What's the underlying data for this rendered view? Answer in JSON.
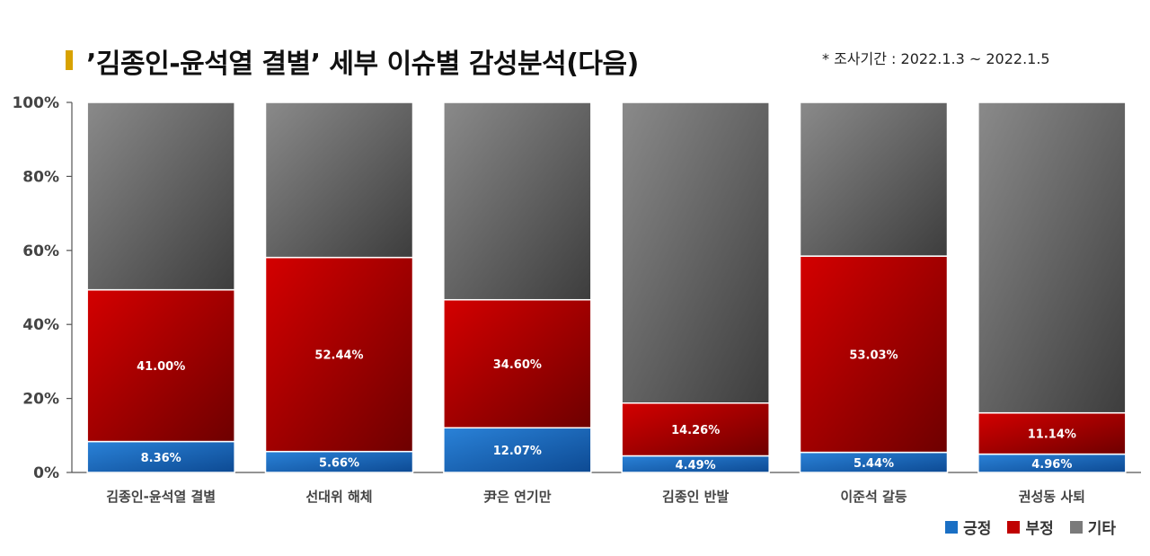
{
  "header": {
    "title": "’김종인-윤석열 결별’ 세부 이슈별 감성분석(다음)",
    "period": "* 조사기간 : 2022.1.3 ~ 2022.1.5"
  },
  "colors": {
    "positive": "#1a6fc4",
    "negative": "#c00000",
    "other": "#7a7a7a",
    "accent": "#d8a200"
  },
  "chart_data": {
    "type": "bar",
    "stacked": true,
    "categories": [
      "김종인-윤석열 결별",
      "선대위 해체",
      "尹은 연기만",
      "김종인 반발",
      "이준석 갈등",
      "권성동 사퇴"
    ],
    "series": [
      {
        "name": "긍정",
        "values": [
          8.36,
          5.66,
          12.07,
          4.49,
          5.44,
          4.96
        ],
        "labels": [
          "8.36%",
          "5.66%",
          "12.07%",
          "4.49%",
          "5.44%",
          "4.96%"
        ]
      },
      {
        "name": "부정",
        "values": [
          41.0,
          52.44,
          34.6,
          14.26,
          53.03,
          11.14
        ],
        "labels": [
          "41.00%",
          "52.44%",
          "34.60%",
          "14.26%",
          "53.03%",
          "11.14%"
        ]
      },
      {
        "name": "기타",
        "values": [
          50.64,
          41.9,
          53.33,
          81.25,
          41.53,
          83.9
        ]
      }
    ],
    "yticks": [
      "0%",
      "20%",
      "40%",
      "60%",
      "80%",
      "100%"
    ],
    "ylim": [
      0,
      100
    ],
    "legend_position": "bottom-right"
  }
}
